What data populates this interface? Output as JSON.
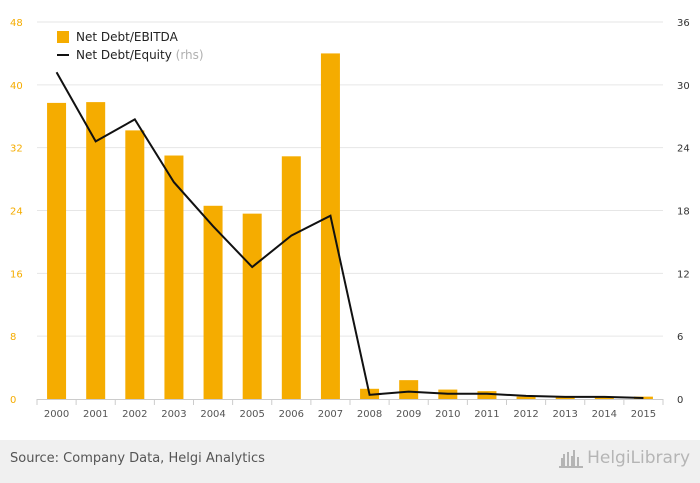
{
  "chart_data": {
    "type": "bar",
    "categories": [
      "2000",
      "2001",
      "2002",
      "2003",
      "2004",
      "2005",
      "2006",
      "2007",
      "2008",
      "2009",
      "2010",
      "2011",
      "2012",
      "2013",
      "2014",
      "2015"
    ],
    "series": [
      {
        "name": "Net Debt/EBITDA",
        "type": "bar",
        "axis": "left",
        "color": "#f5ac00",
        "values": [
          37.7,
          37.8,
          34.2,
          31.0,
          24.6,
          23.6,
          30.9,
          44.0,
          1.3,
          2.4,
          1.2,
          1.0,
          0.3,
          0.3,
          0.2,
          0.3
        ]
      },
      {
        "name": "Net Debt/Equity",
        "name_suffix": "(rhs)",
        "type": "line",
        "axis": "right",
        "color": "#111111",
        "values": [
          31.2,
          24.6,
          26.7,
          20.7,
          16.5,
          12.6,
          15.6,
          17.5,
          0.4,
          0.7,
          0.5,
          0.5,
          0.3,
          0.2,
          0.2,
          0.1
        ]
      }
    ],
    "y_left": {
      "min": 0,
      "max": 48,
      "ticks": [
        "0",
        "8",
        "16",
        "24",
        "32",
        "40",
        "48"
      ],
      "color": "#f5ac00"
    },
    "y_right": {
      "min": 0,
      "max": 36,
      "ticks": [
        "0",
        "6",
        "12",
        "18",
        "24",
        "30",
        "36"
      ],
      "color": "#333333"
    },
    "grid": true,
    "legend_position": "top-left"
  },
  "footer": {
    "source": "Source: Company Data, Helgi Analytics",
    "brand": "HelgiLibrary"
  }
}
